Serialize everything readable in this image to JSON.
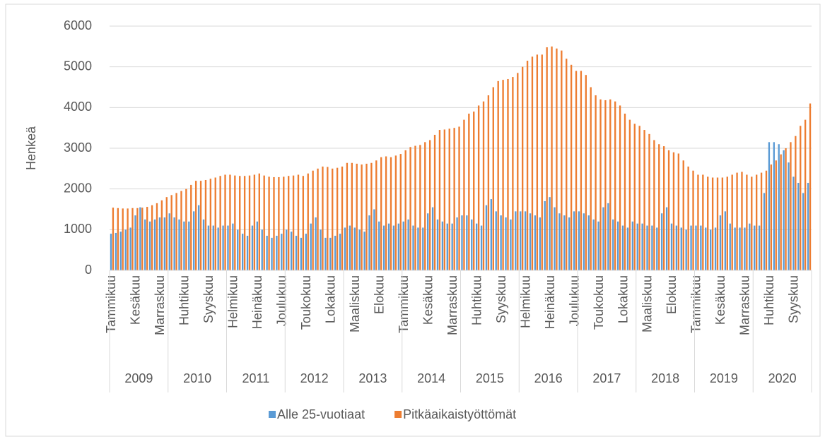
{
  "chart_data": {
    "type": "bar",
    "ylabel": "Henkeä",
    "ylim": [
      0,
      6000
    ],
    "yticks": [
      0,
      1000,
      2000,
      3000,
      4000,
      5000,
      6000
    ],
    "grid": true,
    "legend": "bottom",
    "years": [
      "2009",
      "2010",
      "2011",
      "2012",
      "2013",
      "2014",
      "2015",
      "2016",
      "2017",
      "2018",
      "2019",
      "2020"
    ],
    "categories": [
      "Tammikuu",
      null,
      null,
      null,
      null,
      "Kesäkuu",
      null,
      null,
      null,
      null,
      "Marraskuu",
      null,
      null,
      null,
      null,
      "Huhtikuu",
      null,
      null,
      null,
      null,
      "Syyskuu",
      null,
      null,
      null,
      null,
      "Helmikuu",
      null,
      null,
      null,
      null,
      "Heinäkuu",
      null,
      null,
      null,
      null,
      "Joulukuu",
      null,
      null,
      null,
      null,
      "Toukokuu",
      null,
      null,
      null,
      null,
      "Lokakuu",
      null,
      null,
      null,
      null,
      "Maaliskuu",
      null,
      null,
      null,
      null,
      "Elokuu",
      null,
      null,
      null,
      null,
      "Tammikuu",
      null,
      null,
      null,
      null,
      "Kesäkuu",
      null,
      null,
      null,
      null,
      "Marraskuu",
      null,
      null,
      null,
      null,
      "Huhtikuu",
      null,
      null,
      null,
      null,
      "Syyskuu",
      null,
      null,
      null,
      null,
      "Helmikuu",
      null,
      null,
      null,
      null,
      "Heinäkuu",
      null,
      null,
      null,
      null,
      "Joulukuu",
      null,
      null,
      null,
      null,
      "Toukokuu",
      null,
      null,
      null,
      null,
      "Lokakuu",
      null,
      null,
      null,
      null,
      "Maaliskuu",
      null,
      null,
      null,
      null,
      "Elokuu",
      null,
      null,
      null,
      null,
      "Tammikuu",
      null,
      null,
      null,
      null,
      "Kesäkuu",
      null,
      null,
      null,
      null,
      "Marraskuu",
      null,
      null,
      null,
      null,
      "Huhtikuu",
      null,
      null,
      null,
      null,
      "Syyskuu",
      null,
      null,
      null
    ],
    "series": [
      {
        "name": "Alle 25-vuotiaat",
        "color": "#5b9bd5",
        "values": [
          900,
          920,
          950,
          1000,
          1050,
          1350,
          1550,
          1250,
          1200,
          1250,
          1300,
          1300,
          1400,
          1300,
          1250,
          1200,
          1200,
          1450,
          1600,
          1250,
          1100,
          1100,
          1050,
          1100,
          1100,
          1150,
          1000,
          900,
          850,
          1100,
          1200,
          1000,
          850,
          800,
          850,
          900,
          1000,
          950,
          850,
          800,
          900,
          1150,
          1300,
          1000,
          800,
          800,
          850,
          900,
          1050,
          1100,
          1050,
          1000,
          950,
          1350,
          1500,
          1200,
          1100,
          1150,
          1100,
          1150,
          1200,
          1250,
          1100,
          1050,
          1050,
          1400,
          1550,
          1250,
          1200,
          1150,
          1150,
          1300,
          1350,
          1350,
          1250,
          1150,
          1100,
          1600,
          1750,
          1450,
          1350,
          1300,
          1250,
          1450,
          1450,
          1450,
          1400,
          1350,
          1300,
          1700,
          1800,
          1550,
          1400,
          1350,
          1300,
          1450,
          1450,
          1400,
          1350,
          1250,
          1200,
          1550,
          1650,
          1250,
          1200,
          1100,
          1050,
          1200,
          1150,
          1150,
          1100,
          1100,
          1050,
          1400,
          1550,
          1150,
          1100,
          1050,
          1000,
          1100,
          1100,
          1100,
          1050,
          1000,
          1050,
          1350,
          1450,
          1150,
          1050,
          1050,
          1050,
          1150,
          1100,
          1100,
          1900,
          3150,
          3150,
          3100,
          2950,
          2650,
          2300,
          2150,
          1900,
          2150
        ]
      },
      {
        "name": "Pitkäaikaistyöttömät",
        "color": "#ed7d31",
        "values": [
          1540,
          1530,
          1520,
          1520,
          1530,
          1530,
          1540,
          1560,
          1600,
          1650,
          1720,
          1800,
          1850,
          1900,
          1950,
          2000,
          2100,
          2200,
          2200,
          2220,
          2250,
          2280,
          2320,
          2350,
          2350,
          2330,
          2320,
          2320,
          2330,
          2350,
          2380,
          2330,
          2300,
          2290,
          2290,
          2300,
          2320,
          2330,
          2350,
          2320,
          2380,
          2450,
          2500,
          2550,
          2540,
          2500,
          2520,
          2550,
          2640,
          2640,
          2620,
          2600,
          2620,
          2640,
          2700,
          2780,
          2800,
          2780,
          2820,
          2860,
          2950,
          3030,
          3060,
          3080,
          3150,
          3200,
          3330,
          3450,
          3460,
          3480,
          3500,
          3530,
          3700,
          3850,
          3900,
          4050,
          4150,
          4300,
          4500,
          4650,
          4680,
          4700,
          4750,
          4850,
          5000,
          5150,
          5250,
          5300,
          5300,
          5480,
          5500,
          5450,
          5400,
          5200,
          5050,
          4900,
          4900,
          4800,
          4500,
          4300,
          4200,
          4180,
          4200,
          4150,
          4050,
          3850,
          3700,
          3600,
          3550,
          3450,
          3350,
          3200,
          3100,
          3050,
          2950,
          2900,
          2870,
          2700,
          2550,
          2450,
          2350,
          2350,
          2300,
          2280,
          2280,
          2280,
          2300,
          2350,
          2400,
          2420,
          2350,
          2300,
          2350,
          2400,
          2450,
          2600,
          2700,
          2850,
          3000,
          3150,
          3300,
          3550,
          3700,
          4100
        ]
      }
    ]
  }
}
